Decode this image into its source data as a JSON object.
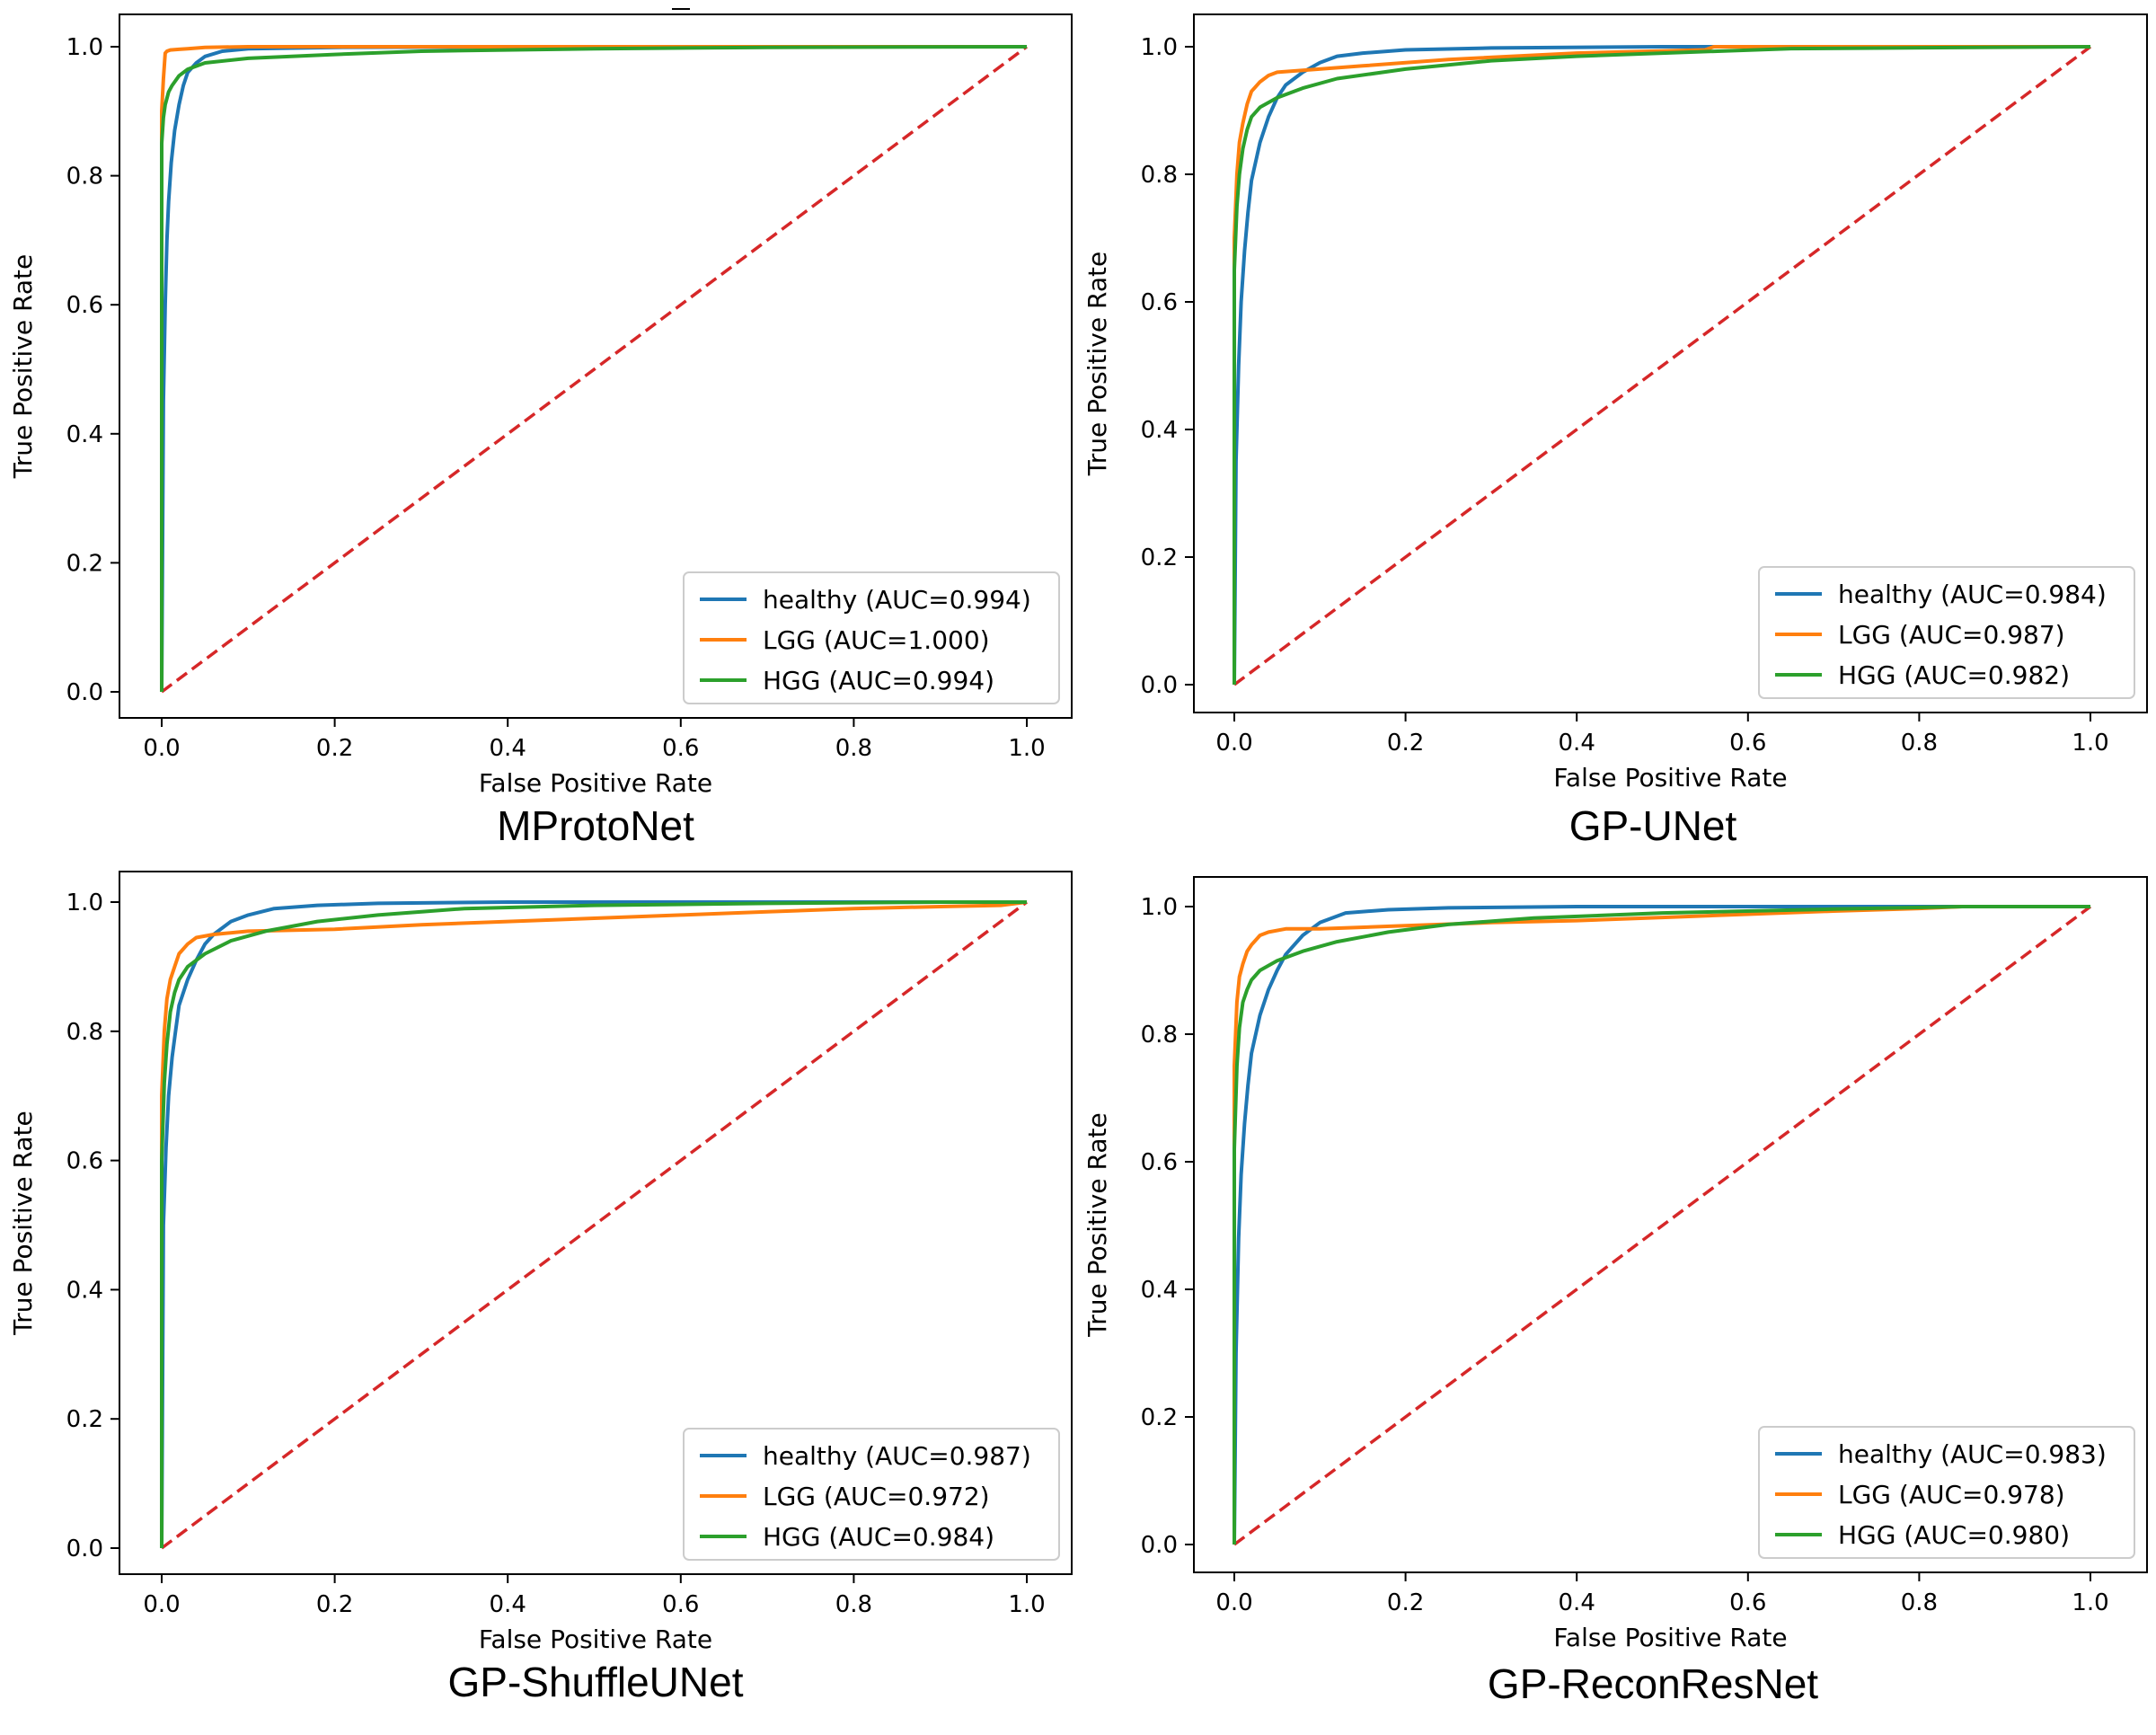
{
  "chart_data": [
    {
      "type": "line",
      "title": "MProtoNet",
      "xlabel": "False Positive Rate",
      "ylabel": "True Positive Rate",
      "xlim": [
        0,
        1
      ],
      "ylim": [
        0,
        1
      ],
      "xticks": [
        "0.0",
        "0.2",
        "0.4",
        "0.6",
        "0.8",
        "1.0"
      ],
      "yticks": [
        "0.0",
        "0.2",
        "0.4",
        "0.6",
        "0.8",
        "1.0"
      ],
      "legend_position": "lower-right",
      "series": [
        {
          "name": "healthy",
          "label": "healthy (AUC=0.994)",
          "color": "#1f77b4",
          "x": [
            0,
            0.002,
            0.004,
            0.006,
            0.008,
            0.011,
            0.015,
            0.02,
            0.025,
            0.03,
            0.04,
            0.05,
            0.07,
            0.1,
            0.2,
            0.5,
            1.0
          ],
          "y": [
            0,
            0.45,
            0.6,
            0.7,
            0.76,
            0.82,
            0.87,
            0.91,
            0.94,
            0.96,
            0.975,
            0.985,
            0.993,
            0.997,
            0.999,
            1.0,
            1.0
          ]
        },
        {
          "name": "LGG",
          "label": "LGG (AUC=1.000)",
          "color": "#ff7f0e",
          "x": [
            0,
            0.0,
            0.002,
            0.004,
            0.006,
            0.01,
            0.02,
            0.03,
            0.05,
            0.1,
            0.3,
            1.0
          ],
          "y": [
            0,
            0.9,
            0.95,
            0.99,
            0.993,
            0.995,
            0.996,
            0.997,
            0.999,
            1.0,
            1.0,
            1.0
          ]
        },
        {
          "name": "HGG",
          "label": "HGG (AUC=0.994)",
          "color": "#2ca02c",
          "x": [
            0,
            0.0,
            0.002,
            0.004,
            0.008,
            0.012,
            0.02,
            0.03,
            0.05,
            0.1,
            0.2,
            0.3,
            0.5,
            0.7,
            1.0
          ],
          "y": [
            0,
            0.85,
            0.89,
            0.91,
            0.93,
            0.94,
            0.955,
            0.965,
            0.975,
            0.982,
            0.988,
            0.993,
            0.997,
            0.999,
            1.0
          ]
        },
        {
          "name": "chance",
          "label": "",
          "color": "#d62728",
          "dashed": true,
          "x": [
            0,
            1
          ],
          "y": [
            0,
            1
          ]
        }
      ]
    },
    {
      "type": "line",
      "title": "GP-UNet",
      "xlabel": "False Positive Rate",
      "ylabel": "True Positive Rate",
      "xlim": [
        0,
        1
      ],
      "ylim": [
        0,
        1
      ],
      "xticks": [
        "0.0",
        "0.2",
        "0.4",
        "0.6",
        "0.8",
        "1.0"
      ],
      "yticks": [
        "0.0",
        "0.2",
        "0.4",
        "0.6",
        "0.8",
        "1.0"
      ],
      "legend_position": "lower-right",
      "series": [
        {
          "name": "healthy",
          "label": "healthy (AUC=0.984)",
          "color": "#1f77b4",
          "x": [
            0,
            0.002,
            0.005,
            0.008,
            0.012,
            0.016,
            0.02,
            0.03,
            0.04,
            0.05,
            0.06,
            0.08,
            0.1,
            0.12,
            0.15,
            0.2,
            0.3,
            0.5,
            1.0
          ],
          "y": [
            0,
            0.35,
            0.5,
            0.6,
            0.68,
            0.74,
            0.79,
            0.85,
            0.89,
            0.92,
            0.94,
            0.96,
            0.975,
            0.985,
            0.99,
            0.995,
            0.998,
            1.0,
            1.0
          ]
        },
        {
          "name": "LGG",
          "label": "LGG (AUC=0.987)",
          "color": "#ff7f0e",
          "x": [
            0,
            0.0,
            0.003,
            0.006,
            0.01,
            0.015,
            0.02,
            0.03,
            0.04,
            0.05,
            0.08,
            0.15,
            0.25,
            0.4,
            0.55,
            0.56,
            0.7,
            1.0
          ],
          "y": [
            0,
            0.7,
            0.8,
            0.85,
            0.88,
            0.91,
            0.93,
            0.945,
            0.955,
            0.96,
            0.963,
            0.97,
            0.98,
            0.99,
            0.995,
            1.0,
            1.0,
            1.0
          ]
        },
        {
          "name": "HGG",
          "label": "HGG (AUC=0.982)",
          "color": "#2ca02c",
          "x": [
            0,
            0.0,
            0.003,
            0.006,
            0.01,
            0.015,
            0.02,
            0.03,
            0.05,
            0.08,
            0.12,
            0.2,
            0.3,
            0.4,
            0.5,
            0.65,
            1.0
          ],
          "y": [
            0,
            0.65,
            0.75,
            0.8,
            0.84,
            0.87,
            0.89,
            0.905,
            0.92,
            0.935,
            0.95,
            0.965,
            0.978,
            0.985,
            0.99,
            0.997,
            1.0
          ]
        },
        {
          "name": "chance",
          "label": "",
          "color": "#d62728",
          "dashed": true,
          "x": [
            0,
            1
          ],
          "y": [
            0,
            1
          ]
        }
      ]
    },
    {
      "type": "line",
      "title": "GP-ShuffleUNet",
      "xlabel": "False Positive Rate",
      "ylabel": "True Positive Rate",
      "xlim": [
        0,
        1
      ],
      "ylim": [
        0,
        1
      ],
      "xticks": [
        "0.0",
        "0.2",
        "0.4",
        "0.6",
        "0.8",
        "1.0"
      ],
      "yticks": [
        "0.0",
        "0.2",
        "0.4",
        "0.6",
        "0.8",
        "1.0"
      ],
      "legend_position": "lower-right",
      "series": [
        {
          "name": "healthy",
          "label": "healthy (AUC=0.987)",
          "color": "#1f77b4",
          "x": [
            0,
            0.002,
            0.005,
            0.008,
            0.012,
            0.016,
            0.02,
            0.03,
            0.04,
            0.05,
            0.06,
            0.08,
            0.1,
            0.13,
            0.18,
            0.25,
            0.4,
            0.6,
            1.0
          ],
          "y": [
            0,
            0.5,
            0.62,
            0.7,
            0.76,
            0.8,
            0.84,
            0.88,
            0.91,
            0.935,
            0.95,
            0.97,
            0.98,
            0.99,
            0.995,
            0.998,
            1.0,
            1.0,
            1.0
          ]
        },
        {
          "name": "LGG",
          "label": "LGG (AUC=0.972)",
          "color": "#ff7f0e",
          "x": [
            0,
            0.0,
            0.003,
            0.006,
            0.01,
            0.015,
            0.02,
            0.03,
            0.04,
            0.06,
            0.1,
            0.2,
            0.3,
            0.4,
            0.5,
            0.6,
            0.7,
            0.8,
            0.9,
            0.97,
            1.0
          ],
          "y": [
            0,
            0.7,
            0.8,
            0.85,
            0.88,
            0.9,
            0.92,
            0.935,
            0.945,
            0.95,
            0.955,
            0.958,
            0.965,
            0.97,
            0.975,
            0.98,
            0.985,
            0.99,
            0.993,
            0.995,
            1.0
          ]
        },
        {
          "name": "HGG",
          "label": "HGG (AUC=0.984)",
          "color": "#2ca02c",
          "x": [
            0,
            0.0,
            0.003,
            0.006,
            0.01,
            0.015,
            0.02,
            0.03,
            0.05,
            0.08,
            0.12,
            0.18,
            0.25,
            0.35,
            0.5,
            0.7,
            0.9,
            1.0
          ],
          "y": [
            0,
            0.6,
            0.72,
            0.78,
            0.83,
            0.86,
            0.88,
            0.9,
            0.92,
            0.94,
            0.955,
            0.97,
            0.98,
            0.99,
            0.995,
            0.998,
            1.0,
            1.0
          ]
        },
        {
          "name": "chance",
          "label": "",
          "color": "#d62728",
          "dashed": true,
          "x": [
            0,
            1
          ],
          "y": [
            0,
            1
          ]
        }
      ]
    },
    {
      "type": "line",
      "title": "GP-ReconResNet",
      "xlabel": "False Positive Rate",
      "ylabel": "True Positive Rate",
      "xlim": [
        0,
        1
      ],
      "ylim": [
        0,
        1
      ],
      "xticks": [
        "0.0",
        "0.2",
        "0.4",
        "0.6",
        "0.8",
        "1.0"
      ],
      "yticks": [
        "0.0",
        "0.2",
        "0.4",
        "0.6",
        "0.8",
        "1.0"
      ],
      "legend_position": "lower-right",
      "series": [
        {
          "name": "healthy",
          "label": "healthy (AUC=0.983)",
          "color": "#1f77b4",
          "x": [
            0,
            0.002,
            0.005,
            0.008,
            0.012,
            0.016,
            0.02,
            0.03,
            0.04,
            0.05,
            0.06,
            0.08,
            0.1,
            0.13,
            0.18,
            0.25,
            0.4,
            0.6,
            1.0
          ],
          "y": [
            0,
            0.3,
            0.48,
            0.58,
            0.66,
            0.72,
            0.77,
            0.83,
            0.87,
            0.9,
            0.925,
            0.955,
            0.975,
            0.99,
            0.995,
            0.998,
            1.0,
            1.0,
            1.0
          ]
        },
        {
          "name": "LGG",
          "label": "LGG (AUC=0.978)",
          "color": "#ff7f0e",
          "x": [
            0,
            0.0,
            0.003,
            0.006,
            0.01,
            0.015,
            0.02,
            0.03,
            0.04,
            0.06,
            0.1,
            0.2,
            0.3,
            0.4,
            0.5,
            0.6,
            0.7,
            0.8,
            0.85,
            1.0
          ],
          "y": [
            0,
            0.75,
            0.85,
            0.89,
            0.91,
            0.93,
            0.94,
            0.955,
            0.96,
            0.965,
            0.965,
            0.97,
            0.975,
            0.978,
            0.983,
            0.988,
            0.993,
            0.997,
            1.0,
            1.0
          ]
        },
        {
          "name": "HGG",
          "label": "HGG (AUC=0.980)",
          "color": "#2ca02c",
          "x": [
            0,
            0.0,
            0.003,
            0.006,
            0.01,
            0.015,
            0.02,
            0.03,
            0.05,
            0.08,
            0.12,
            0.18,
            0.25,
            0.35,
            0.5,
            0.7,
            0.85,
            1.0
          ],
          "y": [
            0,
            0.62,
            0.75,
            0.81,
            0.85,
            0.87,
            0.885,
            0.9,
            0.915,
            0.93,
            0.945,
            0.96,
            0.972,
            0.982,
            0.99,
            0.996,
            1.0,
            1.0
          ]
        },
        {
          "name": "chance",
          "label": "",
          "color": "#d62728",
          "dashed": true,
          "x": [
            0,
            1
          ],
          "y": [
            0,
            1
          ]
        }
      ]
    }
  ]
}
